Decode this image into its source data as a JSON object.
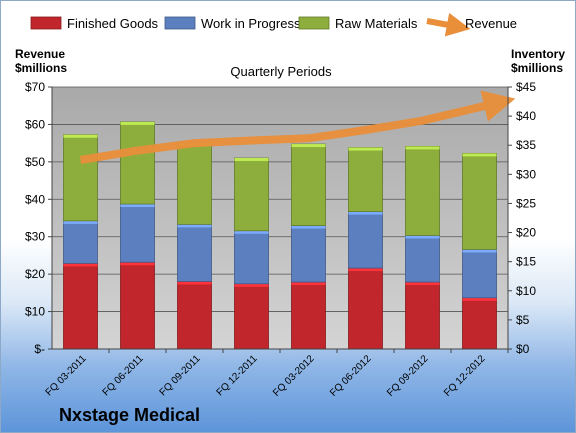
{
  "chart_data": {
    "type": "bar",
    "stacked": true,
    "title": "Quarterly Periods",
    "company": "Nxstage Medical",
    "categories": [
      "FQ 03-2011",
      "FQ 06-2011",
      "FQ 09-2011",
      "FQ 12-2011",
      "FQ 03-2012",
      "FQ 06-2012",
      "FQ 09-2012",
      "FQ 12-2012"
    ],
    "y_left": {
      "label_line1": "Revenue",
      "label_line2": "$millions",
      "ylim": [
        0,
        70
      ],
      "ticks": [
        0,
        10,
        20,
        30,
        40,
        50,
        60,
        70
      ],
      "tick_labels": [
        "$-",
        "$10",
        "$20",
        "$30",
        "$40",
        "$50",
        "$60",
        "$70"
      ]
    },
    "y_right": {
      "label_line1": "Inventory",
      "label_line2": "$millions",
      "ylim": [
        0,
        45
      ],
      "ticks": [
        0,
        5,
        10,
        15,
        20,
        25,
        30,
        35,
        40,
        45
      ],
      "tick_labels": [
        "$0",
        "$5",
        "$10",
        "$15",
        "$20",
        "$25",
        "$30",
        "$35",
        "$40",
        "$45"
      ]
    },
    "series": [
      {
        "name": "Finished Goods",
        "axis": "right",
        "color": "#c0262c",
        "values": [
          14.7,
          14.9,
          11.6,
          11.2,
          11.5,
          13.9,
          11.5,
          8.8
        ]
      },
      {
        "name": "Work in Progress",
        "axis": "right",
        "color": "#5b7fbf",
        "values": [
          7.3,
          10.0,
          9.8,
          9.1,
          9.7,
          9.7,
          8.0,
          8.3
        ]
      },
      {
        "name": "Raw Materials",
        "axis": "right",
        "color": "#8dae3c",
        "values": [
          14.8,
          14.1,
          14.0,
          12.5,
          14.0,
          11.0,
          15.3,
          16.5
        ]
      }
    ],
    "line_series": {
      "name": "Revenue",
      "axis": "left",
      "color": "#e98f3a",
      "values": [
        50.5,
        53.0,
        55.0,
        55.7,
        56.3,
        58.5,
        61.0,
        65.5
      ]
    },
    "grid": true,
    "legend": "top"
  }
}
